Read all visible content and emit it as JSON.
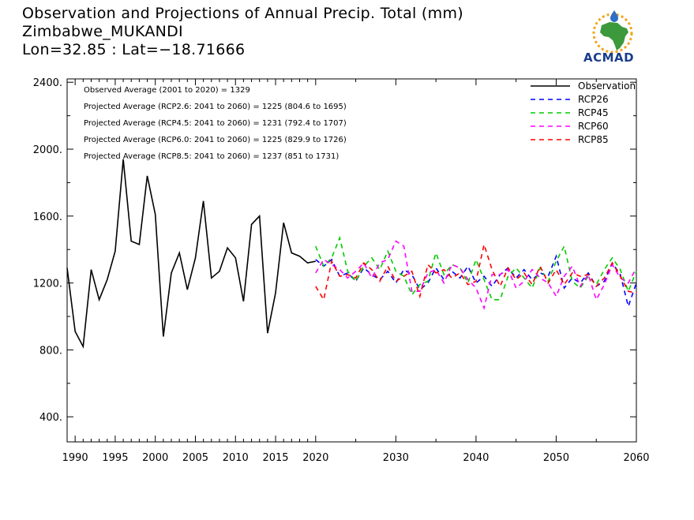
{
  "header": {
    "title_line1": "Observation and Projections of Annual Precip. Total (mm)",
    "title_line2": "Zimbabwe_MUKANDI",
    "title_line3": "Lon=32.85 : Lat=−18.71666"
  },
  "logo": {
    "text": "ACMAD",
    "icon": "africa-map-logo"
  },
  "chart_data": {
    "type": "line",
    "xlim": [
      1989,
      2060
    ],
    "ylim": [
      250,
      2420
    ],
    "x_ticks": [
      1990,
      1995,
      2000,
      2005,
      2010,
      2015,
      2020,
      2030,
      2040,
      2050,
      2060
    ],
    "y_ticks": [
      400,
      800,
      1200,
      1600,
      2000,
      2400
    ],
    "y_tick_labels": [
      "400.",
      "800.",
      "1200.",
      "1600.",
      "2000.",
      "2400."
    ],
    "annotations": [
      "Observed Average (2001 to 2020) = 1329",
      "Projected Average (RCP2.6: 2041 to 2060) = 1225 (804.6 to 1695)",
      "Projected Average (RCP4.5: 2041 to 2060) = 1231 (792.4 to 1707)",
      "Projected Average (RCP6.0: 2041 to 2060) = 1225 (829.9 to 1726)",
      "Projected Average (RCP8.5: 2041 to 2060) = 1237 (851 to 1731)"
    ],
    "legend_position": "top-right",
    "series": [
      {
        "name": "Observation",
        "color": "#000000",
        "dashed": false,
        "x": [
          1989,
          1990,
          1991,
          1992,
          1993,
          1994,
          1995,
          1996,
          1997,
          1998,
          1999,
          2000,
          2001,
          2002,
          2003,
          2004,
          2005,
          2006,
          2007,
          2008,
          2009,
          2010,
          2011,
          2012,
          2013,
          2014,
          2015,
          2016,
          2017,
          2018,
          2019,
          2020
        ],
        "values": [
          1290,
          910,
          820,
          1280,
          1100,
          1220,
          1390,
          1940,
          1450,
          1430,
          1840,
          1610,
          880,
          1260,
          1380,
          1160,
          1350,
          1690,
          1230,
          1270,
          1410,
          1350,
          1090,
          1550,
          1600,
          900,
          1140,
          1560,
          1380,
          1360,
          1320,
          1330
        ]
      },
      {
        "name": "RCP26",
        "color": "#0000ff",
        "dashed": true,
        "x": [
          2020,
          2021,
          2022,
          2023,
          2024,
          2025,
          2026,
          2027,
          2028,
          2029,
          2030,
          2031,
          2032,
          2033,
          2034,
          2035,
          2036,
          2037,
          2038,
          2039,
          2040,
          2041,
          2042,
          2043,
          2044,
          2045,
          2046,
          2047,
          2048,
          2049,
          2050,
          2051,
          2052,
          2053,
          2054,
          2055,
          2056,
          2057,
          2058,
          2059,
          2060
        ],
        "values": [
          1340,
          1300,
          1340,
          1240,
          1260,
          1210,
          1290,
          1250,
          1220,
          1270,
          1200,
          1280,
          1250,
          1160,
          1200,
          1290,
          1220,
          1270,
          1230,
          1300,
          1200,
          1240,
          1180,
          1250,
          1290,
          1230,
          1280,
          1220,
          1260,
          1240,
          1360,
          1170,
          1230,
          1200,
          1260,
          1180,
          1210,
          1320,
          1250,
          1060,
          1200
        ]
      },
      {
        "name": "RCP45",
        "color": "#00cc00",
        "dashed": true,
        "x": [
          2020,
          2021,
          2022,
          2023,
          2024,
          2025,
          2026,
          2027,
          2028,
          2029,
          2030,
          2031,
          2032,
          2033,
          2034,
          2035,
          2036,
          2037,
          2038,
          2039,
          2040,
          2041,
          2042,
          2043,
          2044,
          2045,
          2046,
          2047,
          2048,
          2049,
          2050,
          2051,
          2052,
          2053,
          2054,
          2055,
          2056,
          2057,
          2058,
          2059,
          2060
        ],
        "values": [
          1420,
          1300,
          1350,
          1470,
          1270,
          1210,
          1300,
          1350,
          1280,
          1390,
          1270,
          1240,
          1130,
          1190,
          1210,
          1380,
          1250,
          1310,
          1290,
          1200,
          1340,
          1220,
          1100,
          1100,
          1240,
          1290,
          1230,
          1170,
          1290,
          1210,
          1330,
          1420,
          1210,
          1170,
          1240,
          1190,
          1280,
          1350,
          1280,
          1150,
          1270
        ]
      },
      {
        "name": "RCP60",
        "color": "#ff00ff",
        "dashed": true,
        "x": [
          2020,
          2021,
          2022,
          2023,
          2024,
          2025,
          2026,
          2027,
          2028,
          2029,
          2030,
          2031,
          2032,
          2033,
          2034,
          2035,
          2036,
          2037,
          2038,
          2039,
          2040,
          2041,
          2042,
          2043,
          2044,
          2045,
          2046,
          2047,
          2048,
          2049,
          2050,
          2051,
          2052,
          2053,
          2054,
          2055,
          2056,
          2057,
          2058,
          2059,
          2060
        ],
        "values": [
          1260,
          1340,
          1310,
          1280,
          1230,
          1270,
          1320,
          1230,
          1320,
          1340,
          1450,
          1420,
          1150,
          1150,
          1260,
          1280,
          1200,
          1310,
          1290,
          1220,
          1170,
          1050,
          1250,
          1250,
          1280,
          1170,
          1210,
          1280,
          1230,
          1200,
          1120,
          1240,
          1300,
          1180,
          1250,
          1100,
          1190,
          1310,
          1230,
          1200,
          1290
        ]
      },
      {
        "name": "RCP85",
        "color": "#ff0000",
        "dashed": true,
        "x": [
          2020,
          2021,
          2022,
          2023,
          2024,
          2025,
          2026,
          2027,
          2028,
          2029,
          2030,
          2031,
          2032,
          2033,
          2034,
          2035,
          2036,
          2037,
          2038,
          2039,
          2040,
          2041,
          2042,
          2043,
          2044,
          2045,
          2046,
          2047,
          2048,
          2049,
          2050,
          2051,
          2052,
          2053,
          2054,
          2055,
          2056,
          2057,
          2058,
          2059,
          2060
        ],
        "values": [
          1180,
          1100,
          1330,
          1240,
          1250,
          1230,
          1320,
          1280,
          1210,
          1300,
          1210,
          1240,
          1270,
          1120,
          1310,
          1260,
          1280,
          1230,
          1260,
          1190,
          1210,
          1430,
          1280,
          1180,
          1290,
          1220,
          1260,
          1190,
          1300,
          1200,
          1280,
          1190,
          1260,
          1240,
          1250,
          1180,
          1230,
          1320,
          1240,
          1150,
          1140
        ]
      }
    ]
  }
}
